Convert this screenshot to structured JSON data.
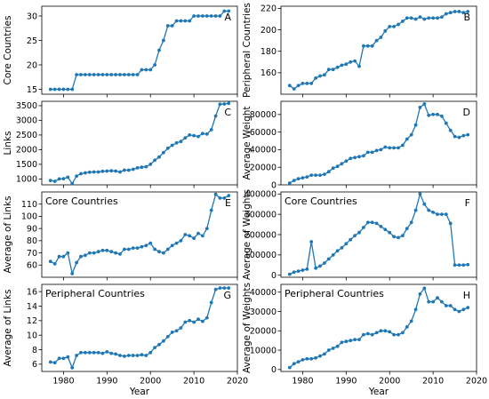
{
  "chart_data": [
    {
      "type": "line",
      "panel": "A",
      "xlabel": "",
      "ylabel": "Core Countries",
      "ylim": [
        14,
        32
      ],
      "yticks": [
        "15",
        "20",
        "25",
        "30"
      ],
      "xlim": [
        1975,
        2020
      ],
      "xticks": [],
      "annotation": "",
      "color": "#1f77b4",
      "x": [
        1977,
        1978,
        1979,
        1980,
        1981,
        1982,
        1983,
        1984,
        1985,
        1986,
        1987,
        1988,
        1989,
        1990,
        1991,
        1992,
        1993,
        1994,
        1995,
        1996,
        1997,
        1998,
        1999,
        2000,
        2001,
        2002,
        2003,
        2004,
        2005,
        2006,
        2007,
        2008,
        2009,
        2010,
        2011,
        2012,
        2013,
        2014,
        2015,
        2016,
        2017,
        2018
      ],
      "y": [
        15,
        15,
        15,
        15,
        15,
        15,
        18,
        18,
        18,
        18,
        18,
        18,
        18,
        18,
        18,
        18,
        18,
        18,
        18,
        18,
        18,
        19,
        19,
        19,
        20,
        23,
        25,
        28,
        28,
        29,
        29,
        29,
        29,
        30,
        30,
        30,
        30,
        30,
        30,
        30,
        31,
        31
      ]
    },
    {
      "type": "line",
      "panel": "B",
      "xlabel": "",
      "ylabel": "Peripheral Countries",
      "ylim": [
        140,
        222
      ],
      "yticks": [
        "160",
        "180",
        "200",
        "220"
      ],
      "xlim": [
        1975,
        2020
      ],
      "xticks": [],
      "annotation": "",
      "color": "#1f77b4",
      "x": [
        1977,
        1978,
        1979,
        1980,
        1981,
        1982,
        1983,
        1984,
        1985,
        1986,
        1987,
        1988,
        1989,
        1990,
        1991,
        1992,
        1993,
        1994,
        1995,
        1996,
        1997,
        1998,
        1999,
        2000,
        2001,
        2002,
        2003,
        2004,
        2005,
        2006,
        2007,
        2008,
        2009,
        2010,
        2011,
        2012,
        2013,
        2014,
        2015,
        2016,
        2017,
        2018
      ],
      "y": [
        148,
        145,
        148,
        150,
        150,
        150,
        155,
        157,
        158,
        163,
        163,
        165,
        167,
        168,
        170,
        171,
        166,
        185,
        185,
        185,
        190,
        193,
        199,
        203,
        203,
        205,
        208,
        211,
        211,
        210,
        212,
        210,
        211,
        211,
        211,
        212,
        215,
        216,
        217,
        217,
        216,
        217
      ]
    },
    {
      "type": "line",
      "panel": "C",
      "xlabel": "",
      "ylabel": "Links",
      "ylim": [
        800,
        3650
      ],
      "yticks": [
        "1000",
        "1500",
        "2000",
        "2500",
        "3000",
        "3500"
      ],
      "xlim": [
        1975,
        2020
      ],
      "xticks": [],
      "annotation": "",
      "color": "#1f77b4",
      "x": [
        1977,
        1978,
        1979,
        1980,
        1981,
        1982,
        1983,
        1984,
        1985,
        1986,
        1987,
        1988,
        1989,
        1990,
        1991,
        1992,
        1993,
        1994,
        1995,
        1996,
        1997,
        1998,
        1999,
        2000,
        2001,
        2002,
        2003,
        2004,
        2005,
        2006,
        2007,
        2008,
        2009,
        2010,
        2011,
        2012,
        2013,
        2014,
        2015,
        2016,
        2017,
        2018
      ],
      "y": [
        950,
        920,
        1000,
        1010,
        1060,
        840,
        1100,
        1180,
        1210,
        1230,
        1240,
        1240,
        1260,
        1270,
        1280,
        1270,
        1240,
        1300,
        1300,
        1330,
        1380,
        1400,
        1420,
        1500,
        1640,
        1750,
        1900,
        2050,
        2150,
        2230,
        2280,
        2400,
        2500,
        2480,
        2450,
        2550,
        2530,
        2680,
        3150,
        3550,
        3560,
        3580
      ]
    },
    {
      "type": "line",
      "panel": "D",
      "xlabel": "",
      "ylabel": "Average Weight",
      "ylim": [
        0,
        95000
      ],
      "yticks": [
        "0",
        "20000",
        "40000",
        "60000",
        "80000"
      ],
      "xlim": [
        1975,
        2020
      ],
      "xticks": [],
      "annotation": "",
      "color": "#1f77b4",
      "x": [
        1977,
        1978,
        1979,
        1980,
        1981,
        1982,
        1983,
        1984,
        1985,
        1986,
        1987,
        1988,
        1989,
        1990,
        1991,
        1992,
        1993,
        1994,
        1995,
        1996,
        1997,
        1998,
        1999,
        2000,
        2001,
        2002,
        2003,
        2004,
        2005,
        2006,
        2007,
        2008,
        2009,
        2010,
        2011,
        2012,
        2013,
        2014,
        2015,
        2016,
        2017,
        2018
      ],
      "y": [
        2000,
        5000,
        7000,
        8000,
        9000,
        11000,
        11000,
        11000,
        12000,
        15000,
        19000,
        21000,
        24000,
        27000,
        30000,
        31000,
        32000,
        33000,
        37000,
        37000,
        39000,
        40000,
        43000,
        42000,
        42000,
        42000,
        45000,
        52000,
        57000,
        68000,
        88000,
        92000,
        79000,
        80000,
        80000,
        78000,
        70000,
        62000,
        55000,
        54000,
        56000,
        57000
      ]
    },
    {
      "type": "line",
      "panel": "E",
      "xlabel": "",
      "ylabel": "Average of Links",
      "ylim": [
        50,
        120
      ],
      "yticks": [
        "60",
        "70",
        "80",
        "90",
        "100",
        "110"
      ],
      "xlim": [
        1975,
        2020
      ],
      "xticks": [],
      "annotation": "Core Countries",
      "color": "#1f77b4",
      "x": [
        1977,
        1978,
        1979,
        1980,
        1981,
        1982,
        1983,
        1984,
        1985,
        1986,
        1987,
        1988,
        1989,
        1990,
        1991,
        1992,
        1993,
        1994,
        1995,
        1996,
        1997,
        1998,
        1999,
        2000,
        2001,
        2002,
        2003,
        2004,
        2005,
        2006,
        2007,
        2008,
        2009,
        2010,
        2011,
        2012,
        2013,
        2014,
        2015,
        2016,
        2017,
        2018
      ],
      "y": [
        63,
        61,
        67,
        67,
        70,
        53,
        62,
        67,
        68,
        70,
        70,
        71,
        72,
        72,
        71,
        70,
        69,
        73,
        73,
        74,
        74,
        75,
        76,
        78,
        73,
        71,
        70,
        73,
        76,
        78,
        80,
        85,
        84,
        82,
        86,
        84,
        90,
        105,
        118,
        115,
        115,
        117
      ]
    },
    {
      "type": "line",
      "panel": "F",
      "xlabel": "",
      "ylabel": "Average of Weights",
      "ylim": [
        -10000,
        410000
      ],
      "yticks": [
        "0",
        "100000",
        "200000",
        "300000",
        "400000"
      ],
      "xlim": [
        1975,
        2020
      ],
      "xticks": [],
      "annotation": "Core Countries",
      "color": "#1f77b4",
      "x": [
        1977,
        1978,
        1979,
        1980,
        1981,
        1982,
        1983,
        1984,
        1985,
        1986,
        1987,
        1988,
        1989,
        1990,
        1991,
        1992,
        1993,
        1994,
        1995,
        1996,
        1997,
        1998,
        1999,
        2000,
        2001,
        2002,
        2003,
        2004,
        2005,
        2006,
        2007,
        2008,
        2009,
        2010,
        2011,
        2012,
        2013,
        2014,
        2015,
        2016,
        2017,
        2018
      ],
      "y": [
        5000,
        15000,
        20000,
        25000,
        30000,
        165000,
        35000,
        45000,
        60000,
        80000,
        100000,
        120000,
        135000,
        155000,
        175000,
        195000,
        210000,
        235000,
        260000,
        260000,
        255000,
        240000,
        225000,
        210000,
        190000,
        185000,
        195000,
        230000,
        260000,
        320000,
        400000,
        350000,
        320000,
        310000,
        300000,
        300000,
        300000,
        255000,
        50000,
        50000,
        50000,
        52000
      ]
    },
    {
      "type": "line",
      "panel": "G",
      "xlabel": "Year",
      "ylabel": "Average of Links",
      "ylim": [
        5,
        17
      ],
      "yticks": [
        "6",
        "8",
        "10",
        "12",
        "14",
        "16"
      ],
      "xlim": [
        1975,
        2020
      ],
      "xticks": [
        "1980",
        "1990",
        "2000",
        "2010",
        "2020"
      ],
      "annotation": "Peripheral Countries",
      "color": "#1f77b4",
      "x": [
        1977,
        1978,
        1979,
        1980,
        1981,
        1982,
        1983,
        1984,
        1985,
        1986,
        1987,
        1988,
        1989,
        1990,
        1991,
        1992,
        1993,
        1994,
        1995,
        1996,
        1997,
        1998,
        1999,
        2000,
        2001,
        2002,
        2003,
        2004,
        2005,
        2006,
        2007,
        2008,
        2009,
        2010,
        2011,
        2012,
        2013,
        2014,
        2015,
        2016,
        2017,
        2018
      ],
      "y": [
        6.3,
        6.2,
        6.8,
        6.8,
        7.0,
        5.5,
        7.2,
        7.6,
        7.6,
        7.6,
        7.6,
        7.6,
        7.5,
        7.7,
        7.5,
        7.4,
        7.2,
        7.1,
        7.2,
        7.2,
        7.2,
        7.3,
        7.2,
        7.6,
        8.3,
        8.7,
        9.2,
        9.8,
        10.4,
        10.6,
        11.0,
        11.8,
        12.0,
        11.8,
        12.2,
        11.9,
        12.4,
        14.5,
        16.3,
        16.5,
        16.5,
        16.5
      ]
    },
    {
      "type": "line",
      "panel": "H",
      "xlabel": "Year",
      "ylabel": "Average of Weights",
      "ylim": [
        -1000,
        44000
      ],
      "yticks": [
        "0",
        "10000",
        "20000",
        "30000",
        "40000"
      ],
      "xlim": [
        1975,
        2020
      ],
      "xticks": [
        "1980",
        "1990",
        "2000",
        "2010",
        "2020"
      ],
      "annotation": "Peripheral Countries",
      "color": "#1f77b4",
      "x": [
        1977,
        1978,
        1979,
        1980,
        1981,
        1982,
        1983,
        1984,
        1985,
        1986,
        1987,
        1988,
        1989,
        1990,
        1991,
        1992,
        1993,
        1994,
        1995,
        1996,
        1997,
        1998,
        1999,
        2000,
        2001,
        2002,
        2003,
        2004,
        2005,
        2006,
        2007,
        2008,
        2009,
        2010,
        2011,
        2012,
        2013,
        2014,
        2015,
        2016,
        2017,
        2018
      ],
      "y": [
        1000,
        3000,
        4000,
        5000,
        5500,
        5500,
        6000,
        7000,
        8000,
        10000,
        11000,
        12000,
        14000,
        14500,
        15000,
        15500,
        15500,
        18000,
        18500,
        18000,
        19000,
        20000,
        20000,
        19500,
        18000,
        18000,
        19000,
        22000,
        25000,
        31000,
        39000,
        42000,
        35000,
        35000,
        37000,
        35000,
        33000,
        33000,
        31000,
        30000,
        31000,
        32000
      ]
    }
  ]
}
